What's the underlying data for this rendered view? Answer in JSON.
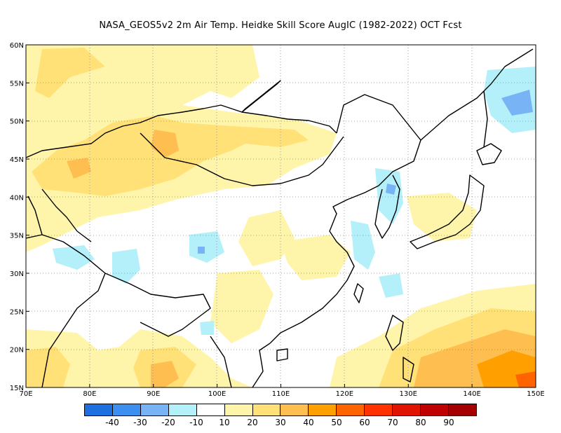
{
  "title": "NASA_GEOS5v2  2m Air Temp. Heidke Skill Score AugIC (1982-2022) OCT Fcst",
  "map": {
    "lon_range": [
      70,
      150
    ],
    "lat_range": [
      15,
      60
    ],
    "grid": "dotted",
    "lon_ticks": [
      "70E",
      "80E",
      "90E",
      "100E",
      "110E",
      "120E",
      "130E",
      "140E",
      "150E"
    ],
    "lat_ticks": [
      "15N",
      "20N",
      "25N",
      "30N",
      "35N",
      "40N",
      "45N",
      "50N",
      "55N",
      "60N"
    ]
  },
  "colorbar": {
    "colors": [
      "#1e6fe0",
      "#3c8ef0",
      "#78b4f5",
      "#b4f0fa",
      "#ffffff",
      "#fff5aa",
      "#ffe178",
      "#ffbe50",
      "#ffa000",
      "#ff6400",
      "#ff3200",
      "#e11400",
      "#c00000",
      "#a50000"
    ],
    "labels": [
      "-40",
      "-30",
      "-20",
      "-10",
      "10",
      "20",
      "30",
      "40",
      "50",
      "60",
      "70",
      "80",
      "90"
    ]
  },
  "palette": {
    "yellow_light": "#fff5aa",
    "yellow": "#ffe178",
    "orange_light": "#ffbe50",
    "orange": "#ffa000",
    "cyan_light": "#b4f0fa",
    "blue_light": "#78b4f5"
  }
}
